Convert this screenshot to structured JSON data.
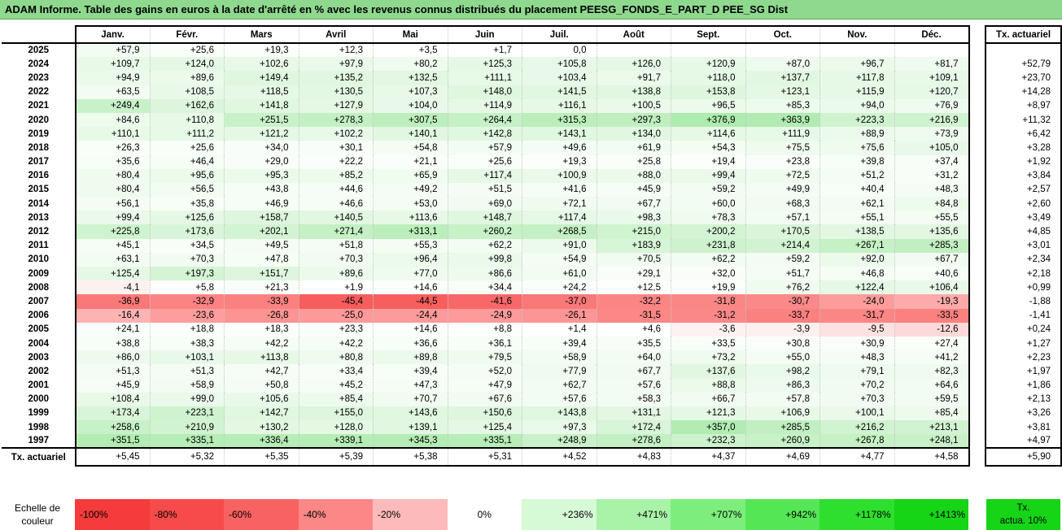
{
  "title": "ADAM Informe. Table des gains en euros à la date d'arrêté en % avec les revenus connus distribués du placement PEESG_FONDS_E_PART_D PEE_SG Dist",
  "months": [
    "Janv.",
    "Févr.",
    "Mars",
    "Avril",
    "Mai",
    "Juin",
    "Juil.",
    "Août",
    "Sept.",
    "Oct.",
    "Nov.",
    "Déc."
  ],
  "tx_header": "Tx. actuariel",
  "rows": [
    {
      "year": "2025",
      "values": [
        "+57,9",
        "+25,6",
        "+19,3",
        "+12,3",
        "+3,5",
        "+1,7",
        "0,0",
        "",
        "",
        "",
        "",
        ""
      ],
      "colors": [
        "#f3fcf3",
        "#f9fef9",
        "#fbfefb",
        "#fdfffd",
        "#fefffe",
        "#ffffff",
        "#ffffff",
        "#ffffff",
        "#ffffff",
        "#ffffff",
        "#ffffff",
        "#ffffff"
      ],
      "tx": ""
    },
    {
      "year": "2024",
      "values": [
        "+109,7",
        "+124,0",
        "+102,6",
        "+97,9",
        "+80,2",
        "+125,3",
        "+105,8",
        "+126,0",
        "+120,9",
        "+87,0",
        "+96,7",
        "+81,7"
      ],
      "colors": [
        "#e8f9e8",
        "#e5f8e5",
        "#e9f9e9",
        "#eafaea",
        "#eefbee",
        "#e5f8e5",
        "#e9f9e9",
        "#e5f8e5",
        "#e6f8e6",
        "#edfaed",
        "#ebfaeb",
        "#eefbee"
      ],
      "tx": "+52,79"
    },
    {
      "year": "2023",
      "values": [
        "+94,9",
        "+89,6",
        "+149,4",
        "+135,2",
        "+132,5",
        "+111,1",
        "+103,4",
        "+91,7",
        "+118,0",
        "+137,7",
        "+117,8",
        "+109,1"
      ],
      "colors": [
        "#ebfaeb",
        "#ecfaec",
        "#dff7df",
        "#e2f7e2",
        "#e3f7e3",
        "#e7f9e7",
        "#e9f9e9",
        "#ecfaec",
        "#e6f8e6",
        "#e2f7e2",
        "#e6f8e6",
        "#e8f9e8"
      ],
      "tx": "+23,70"
    },
    {
      "year": "2022",
      "values": [
        "+63,5",
        "+108,5",
        "+118,5",
        "+130,5",
        "+107,3",
        "+148,0",
        "+141,5",
        "+138,8",
        "+153,8",
        "+123,1",
        "+115,9",
        "+120,7"
      ],
      "colors": [
        "#f2fcf2",
        "#e8f9e8",
        "#e6f8e6",
        "#e3f8e3",
        "#e8f9e8",
        "#dff7df",
        "#e1f7e1",
        "#e1f7e1",
        "#def6de",
        "#e5f8e5",
        "#e7f8e7",
        "#e6f8e6"
      ],
      "tx": "+14,28"
    },
    {
      "year": "2021",
      "values": [
        "+249,4",
        "+162,6",
        "+141,8",
        "+127,9",
        "+104,0",
        "+114,9",
        "+116,1",
        "+100,5",
        "+96,5",
        "+85,3",
        "+94,0",
        "+76,9"
      ],
      "colors": [
        "#c9f1c9",
        "#dcf5dc",
        "#e0f7e0",
        "#e4f8e4",
        "#e9f9e9",
        "#e7f8e7",
        "#e7f8e7",
        "#eaf9ea",
        "#ebfaeb",
        "#edfbed",
        "#ebfaeb",
        "#effbef"
      ],
      "tx": "+8,97"
    },
    {
      "year": "2020",
      "values": [
        "+84,6",
        "+110,8",
        "+251,5",
        "+278,3",
        "+307,5",
        "+264,4",
        "+315,3",
        "+297,3",
        "+376,9",
        "+363,9",
        "+223,3",
        "+216,9"
      ],
      "colors": [
        "#edfbed",
        "#e8f9e8",
        "#c9f1c9",
        "#c3f0c3",
        "#bdeebd",
        "#c6f0c6",
        "#bbeebb",
        "#bfeebf",
        "#aeebae",
        "#b1ebb1",
        "#cff3cf",
        "#d0f3d0"
      ],
      "tx": "+11,32"
    },
    {
      "year": "2019",
      "values": [
        "+110,1",
        "+111,2",
        "+121,2",
        "+102,2",
        "+140,1",
        "+142,8",
        "+143,1",
        "+134,0",
        "+114,6",
        "+111,9",
        "+88,9",
        "+73,9"
      ],
      "colors": [
        "#e8f9e8",
        "#e7f9e7",
        "#e5f8e5",
        "#e9f9e9",
        "#e1f7e1",
        "#e0f7e0",
        "#e0f7e0",
        "#e2f7e2",
        "#e7f8e7",
        "#e7f9e7",
        "#ecfaec",
        "#effbef"
      ],
      "tx": "+6,42"
    },
    {
      "year": "2018",
      "values": [
        "+26,3",
        "+25,6",
        "+34,0",
        "+30,1",
        "+54,8",
        "+57,9",
        "+49,6",
        "+61,9",
        "+54,3",
        "+75,5",
        "+75,6",
        "+105,0"
      ],
      "colors": [
        "#f9fef9",
        "#f9fef9",
        "#f8fdf8",
        "#f9fdf9",
        "#f4fcf4",
        "#f3fcf3",
        "#f5fcf5",
        "#f2fcf2",
        "#f4fcf4",
        "#effbef",
        "#effbef",
        "#e9f9e9"
      ],
      "tx": "+3,28"
    },
    {
      "year": "2017",
      "values": [
        "+35,6",
        "+46,4",
        "+29,0",
        "+22,2",
        "+21,1",
        "+25,6",
        "+19,3",
        "+25,8",
        "+19,4",
        "+23,8",
        "+39,8",
        "+37,4"
      ],
      "colors": [
        "#f7fdf7",
        "#f5fdf5",
        "#f9fdf9",
        "#fafefa",
        "#fafefa",
        "#f9fef9",
        "#fbfefb",
        "#f9fef9",
        "#fbfefb",
        "#fafefa",
        "#f7fdf7",
        "#f7fdf7"
      ],
      "tx": "+1,92"
    },
    {
      "year": "2016",
      "values": [
        "+80,4",
        "+95,6",
        "+95,3",
        "+85,2",
        "+65,9",
        "+117,4",
        "+100,9",
        "+88,0",
        "+99,4",
        "+72,5",
        "+51,2",
        "+31,2"
      ],
      "colors": [
        "#eefbee",
        "#ebfaeb",
        "#ebfaeb",
        "#edfbed",
        "#f1fcf1",
        "#e6f8e6",
        "#eaf9ea",
        "#ecfaec",
        "#eaf9ea",
        "#f0fbf0",
        "#f5fcf5",
        "#f8fdf8"
      ],
      "tx": "+3,84"
    },
    {
      "year": "2015",
      "values": [
        "+80,4",
        "+56,5",
        "+43,8",
        "+44,6",
        "+49,2",
        "+51,5",
        "+41,6",
        "+45,9",
        "+59,2",
        "+49,9",
        "+40,4",
        "+48,3"
      ],
      "colors": [
        "#eefbee",
        "#f3fcf3",
        "#f6fdf6",
        "#f6fdf6",
        "#f5fcf5",
        "#f5fcf5",
        "#f6fdf6",
        "#f6fdf6",
        "#f3fcf3",
        "#f5fcf5",
        "#f7fdf7",
        "#f5fcf5"
      ],
      "tx": "+2,57"
    },
    {
      "year": "2014",
      "values": [
        "+56,1",
        "+35,8",
        "+46,9",
        "+46,6",
        "+53,0",
        "+69,0",
        "+72,1",
        "+67,7",
        "+60,0",
        "+68,3",
        "+62,1",
        "+84,8"
      ],
      "colors": [
        "#f4fcf4",
        "#f7fdf7",
        "#f5fdf5",
        "#f5fdf5",
        "#f4fcf4",
        "#f1fbf1",
        "#f0fbf0",
        "#f1fbf1",
        "#f3fcf3",
        "#f1fbf1",
        "#f2fcf2",
        "#edfbed"
      ],
      "tx": "+2,60"
    },
    {
      "year": "2013",
      "values": [
        "+99,4",
        "+125,6",
        "+158,7",
        "+140,5",
        "+113,6",
        "+148,7",
        "+117,4",
        "+98,3",
        "+78,3",
        "+57,1",
        "+55,1",
        "+55,5"
      ],
      "colors": [
        "#eaf9ea",
        "#e5f8e5",
        "#ddf6dd",
        "#e1f7e1",
        "#e7f8e7",
        "#dff7df",
        "#e6f8e6",
        "#eafaea",
        "#eefbee",
        "#f3fcf3",
        "#f4fcf4",
        "#f4fcf4"
      ],
      "tx": "+3,49"
    },
    {
      "year": "2012",
      "values": [
        "+225,8",
        "+173,6",
        "+202,1",
        "+271,4",
        "+313,1",
        "+260,2",
        "+268,5",
        "+215,0",
        "+200,2",
        "+170,5",
        "+138,5",
        "+135,6"
      ],
      "colors": [
        "#cef3ce",
        "#d9f5d9",
        "#d3f4d3",
        "#c4f0c4",
        "#bbeebb",
        "#c7f1c7",
        "#c5f0c5",
        "#d0f3d0",
        "#d3f4d3",
        "#daf5da",
        "#e1f7e1",
        "#e2f7e2"
      ],
      "tx": "+4,85"
    },
    {
      "year": "2011",
      "values": [
        "+45,1",
        "+34,5",
        "+49,5",
        "+51,8",
        "+55,3",
        "+62,2",
        "+91,0",
        "+183,9",
        "+231,8",
        "+214,4",
        "+267,1",
        "+285,3"
      ],
      "colors": [
        "#f6fdf6",
        "#f8fdf8",
        "#f5fcf5",
        "#f5fcf5",
        "#f4fcf4",
        "#f2fcf2",
        "#ecfaec",
        "#d7f5d7",
        "#cdf2cd",
        "#d1f3d1",
        "#c5f1c5",
        "#c1efc1"
      ],
      "tx": "+3,01"
    },
    {
      "year": "2010",
      "values": [
        "+63,1",
        "+70,3",
        "+47,8",
        "+70,3",
        "+96,4",
        "+99,8",
        "+54,9",
        "+70,5",
        "+62,2",
        "+59,2",
        "+92,0",
        "+67,7"
      ],
      "colors": [
        "#f2fcf2",
        "#f1fbf1",
        "#f5fdf5",
        "#f1fbf1",
        "#ebfaeb",
        "#eaf9ea",
        "#f4fcf4",
        "#f1fbf1",
        "#f2fcf2",
        "#f3fcf3",
        "#ecfaec",
        "#f1fbf1"
      ],
      "tx": "+2,34"
    },
    {
      "year": "2009",
      "values": [
        "+125,4",
        "+197,3",
        "+151,7",
        "+89,6",
        "+77,0",
        "+86,6",
        "+61,0",
        "+29,1",
        "+32,0",
        "+51,7",
        "+46,8",
        "+40,6"
      ],
      "colors": [
        "#e5f8e5",
        "#d4f4d4",
        "#def6de",
        "#ecfaec",
        "#effbef",
        "#edfaed",
        "#f2fcf2",
        "#f9fdf9",
        "#f8fdf8",
        "#f5fcf5",
        "#f5fdf5",
        "#f7fdf7"
      ],
      "tx": "+2,18"
    },
    {
      "year": "2008",
      "values": [
        "-4,1",
        "+5,8",
        "+21,3",
        "+1,9",
        "+14,6",
        "+34,4",
        "+24,2",
        "+12,5",
        "+19,9",
        "+76,2",
        "+122,4",
        "+106,4"
      ],
      "colors": [
        "#fff0f0",
        "#fefffe",
        "#fafefa",
        "#ffffff",
        "#fcfefc",
        "#f8fdf8",
        "#fafefa",
        "#fdfffd",
        "#fbfefb",
        "#effbef",
        "#e5f8e5",
        "#e9f9e9"
      ],
      "tx": "+0,99"
    },
    {
      "year": "2007",
      "values": [
        "-36,9",
        "-32,9",
        "-33,9",
        "-45,4",
        "-44,5",
        "-41,6",
        "-37,0",
        "-32,2",
        "-31,8",
        "-30,7",
        "-24,0",
        "-19,3"
      ],
      "colors": [
        "#f97878",
        "#fb8383",
        "#fb8080",
        "#f75d5d",
        "#f75f5f",
        "#f86868",
        "#f97878",
        "#fb8585",
        "#fb8686",
        "#fb8989",
        "#fd9c9c",
        "#feaaaa"
      ],
      "tx": "-1,88"
    },
    {
      "year": "2006",
      "values": [
        "-16,4",
        "-23,6",
        "-26,8",
        "-25,0",
        "-24,4",
        "-24,9",
        "-26,1",
        "-31,5",
        "-31,2",
        "-33,7",
        "-31,7",
        "-33,5"
      ],
      "colors": [
        "#feb3b3",
        "#fd9d9d",
        "#fc9494",
        "#fd9999",
        "#fd9b9b",
        "#fd9a9a",
        "#fc9696",
        "#fb8787",
        "#fb8888",
        "#fb8181",
        "#fb8686",
        "#fb8181"
      ],
      "tx": "-1,41"
    },
    {
      "year": "2005",
      "values": [
        "+24,1",
        "+18,8",
        "+18,3",
        "+23,3",
        "+14,6",
        "+8,8",
        "+1,4",
        "+4,6",
        "-3,6",
        "-3,9",
        "-9,5",
        "-12,6"
      ],
      "colors": [
        "#fafefa",
        "#fbfefb",
        "#fbfefb",
        "#fafefa",
        "#fcfefc",
        "#fdfffd",
        "#ffffff",
        "#fefffe",
        "#fff1f1",
        "#fff0f0",
        "#fee1e1",
        "#fed9d9"
      ],
      "tx": "+0,24"
    },
    {
      "year": "2004",
      "values": [
        "+38,8",
        "+38,3",
        "+42,2",
        "+42,2",
        "+36,6",
        "+36,1",
        "+39,4",
        "+35,5",
        "+33,5",
        "+30,8",
        "+30,9",
        "+27,4"
      ],
      "colors": [
        "#f7fdf7",
        "#f7fdf7",
        "#f6fdf6",
        "#f6fdf6",
        "#f7fdf7",
        "#f7fdf7",
        "#f7fdf7",
        "#f8fdf8",
        "#f8fdf8",
        "#f9fdf9",
        "#f9fdf9",
        "#f9fef9"
      ],
      "tx": "+1,27"
    },
    {
      "year": "2003",
      "values": [
        "+86,0",
        "+103,1",
        "+113,8",
        "+80,8",
        "+89,8",
        "+79,5",
        "+58,9",
        "+64,0",
        "+73,2",
        "+55,0",
        "+48,3",
        "+41,2"
      ],
      "colors": [
        "#edfaed",
        "#e9f9e9",
        "#e7f8e7",
        "#eefbee",
        "#ecfaec",
        "#eefbee",
        "#f3fcf3",
        "#f2fcf2",
        "#f0fbf0",
        "#f4fcf4",
        "#f5fcf5",
        "#f6fdf6"
      ],
      "tx": "+2,23"
    },
    {
      "year": "2002",
      "values": [
        "+51,3",
        "+51,3",
        "+42,7",
        "+33,4",
        "+39,4",
        "+52,0",
        "+77,9",
        "+67,7",
        "+137,6",
        "+98,2",
        "+79,1",
        "+82,3"
      ],
      "colors": [
        "#f5fcf5",
        "#f5fcf5",
        "#f6fdf6",
        "#f8fdf8",
        "#f7fdf7",
        "#f5fcf5",
        "#effbef",
        "#f1fbf1",
        "#e2f7e2",
        "#eafaea",
        "#eefbee",
        "#eefbee"
      ],
      "tx": "+1,97"
    },
    {
      "year": "2001",
      "values": [
        "+45,9",
        "+58,9",
        "+50,8",
        "+45,2",
        "+47,3",
        "+47,9",
        "+62,7",
        "+57,6",
        "+88,8",
        "+86,3",
        "+70,2",
        "+64,6"
      ],
      "colors": [
        "#f6fdf6",
        "#f3fcf3",
        "#f5fcf5",
        "#f6fdf6",
        "#f5fdf5",
        "#f5fdf5",
        "#f2fcf2",
        "#f3fcf3",
        "#ecfaec",
        "#edfaed",
        "#f1fbf1",
        "#f2fcf2"
      ],
      "tx": "+1,86"
    },
    {
      "year": "2000",
      "values": [
        "+108,4",
        "+99,0",
        "+105,6",
        "+85,4",
        "+70,7",
        "+67,6",
        "+57,6",
        "+58,3",
        "+66,7",
        "+57,8",
        "+70,3",
        "+59,5"
      ],
      "colors": [
        "#e8f9e8",
        "#eaf9ea",
        "#e9f9e9",
        "#edfbed",
        "#f1fbf1",
        "#f1fbf1",
        "#f3fcf3",
        "#f3fcf3",
        "#f1fbf1",
        "#f3fcf3",
        "#f1fbf1",
        "#f3fcf3"
      ],
      "tx": "+2,13"
    },
    {
      "year": "1999",
      "values": [
        "+173,4",
        "+223,1",
        "+142,7",
        "+155,0",
        "+143,6",
        "+150,6",
        "+143,8",
        "+131,1",
        "+121,3",
        "+106,9",
        "+100,1",
        "+85,4"
      ],
      "colors": [
        "#d9f5d9",
        "#cff3cf",
        "#e0f7e0",
        "#ddf6dd",
        "#e0f7e0",
        "#def6de",
        "#e0f7e0",
        "#e3f7e3",
        "#e5f8e5",
        "#e8f9e8",
        "#eaf9ea",
        "#edfbed"
      ],
      "tx": "+3,26"
    },
    {
      "year": "1998",
      "values": [
        "+258,6",
        "+210,9",
        "+130,2",
        "+128,0",
        "+139,1",
        "+125,4",
        "+97,3",
        "+172,4",
        "+357,0",
        "+285,5",
        "+216,2",
        "+213,1"
      ],
      "colors": [
        "#c7f1c7",
        "#d1f3d1",
        "#e3f7e3",
        "#e4f8e4",
        "#e1f7e1",
        "#e5f8e5",
        "#eafaea",
        "#d9f5d9",
        "#b2ecb2",
        "#c1efc1",
        "#d0f3d0",
        "#d1f3d1"
      ],
      "tx": "+3,81"
    },
    {
      "year": "1997",
      "values": [
        "+351,5",
        "+335,1",
        "+336,4",
        "+339,1",
        "+345,3",
        "+335,1",
        "+248,9",
        "+278,6",
        "+232,3",
        "+260,9",
        "+267,8",
        "+248,1"
      ],
      "colors": [
        "#b3ecb3",
        "#b7edb7",
        "#b7edb7",
        "#b6edb6",
        "#b5ecb5",
        "#b7edb7",
        "#c9f1c9",
        "#c3f0c3",
        "#cdf2cd",
        "#c7f1c7",
        "#c5f1c5",
        "#c9f1c9"
      ],
      "tx": "+4,97"
    }
  ],
  "tx_row": {
    "label": "Tx. actuariel",
    "values": [
      "+5,45",
      "+5,32",
      "+5,35",
      "+5,39",
      "+5,38",
      "+5,31",
      "+4,52",
      "+4,83",
      "+4,37",
      "+4,69",
      "+4,77",
      "+4,58"
    ],
    "total": "+5,90"
  },
  "scale": {
    "label_line1": "Echelle de",
    "label_line2": "couleur",
    "cells": [
      {
        "text": "-100%",
        "color": "#f53b3b",
        "kind": "neg"
      },
      {
        "text": "-80%",
        "color": "#f74a4a",
        "kind": "neg"
      },
      {
        "text": "-60%",
        "color": "#f96262",
        "kind": "neg"
      },
      {
        "text": "-40%",
        "color": "#fb8787",
        "kind": "neg"
      },
      {
        "text": "-20%",
        "color": "#fdbaba",
        "kind": "neg"
      },
      {
        "text": "0%",
        "color": "#ffffff",
        "kind": "zero"
      },
      {
        "text": "+236%",
        "color": "#d6f9d6",
        "kind": "pos"
      },
      {
        "text": "+471%",
        "color": "#a9f3a9",
        "kind": "pos"
      },
      {
        "text": "+707%",
        "color": "#7ded7d",
        "kind": "pos"
      },
      {
        "text": "+942%",
        "color": "#55e655",
        "kind": "pos"
      },
      {
        "text": "+1178%",
        "color": "#2edf2e",
        "kind": "pos"
      },
      {
        "text": "+1413%",
        "color": "#16d416",
        "kind": "pos"
      }
    ],
    "tx_line1": "Tx.",
    "tx_line2": "actua. 10%"
  }
}
